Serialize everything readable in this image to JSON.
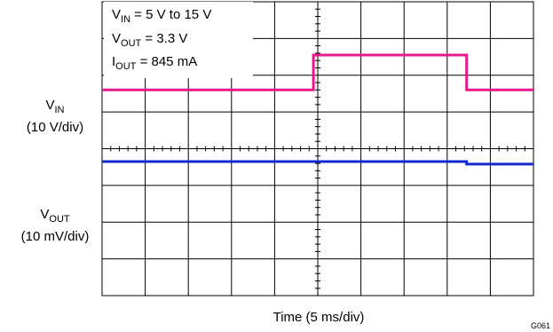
{
  "chart_data": {
    "type": "line",
    "title": "",
    "conditions": {
      "vin": {
        "name": "V",
        "sub": "IN",
        "text": " = 5 V to 15 V"
      },
      "vout": {
        "name": "V",
        "sub": "OUT",
        "text": " = 3.3 V"
      },
      "iout": {
        "name": "I",
        "sub": "OUT",
        "text": " = 845 mA"
      }
    },
    "xlabel": "Time (5 ms/div)",
    "x_divisions": 10,
    "y_divisions": 8,
    "grid": true,
    "figure_id": "G061",
    "series": [
      {
        "name": "V",
        "sub": "IN",
        "scale": "(10 V/div)",
        "color": "#e8198b",
        "unit": "div",
        "x": [
          0,
          4.9,
          4.9,
          8.45,
          8.45,
          10
        ],
        "y": [
          5.6,
          5.6,
          6.55,
          6.55,
          5.6,
          5.6
        ]
      },
      {
        "name": "V",
        "sub": "OUT",
        "scale": "(10 mV/div)",
        "color": "#1428d2",
        "unit": "div",
        "x": [
          0,
          8.45,
          8.45,
          10
        ],
        "y": [
          3.65,
          3.65,
          3.58,
          3.58
        ]
      }
    ]
  }
}
